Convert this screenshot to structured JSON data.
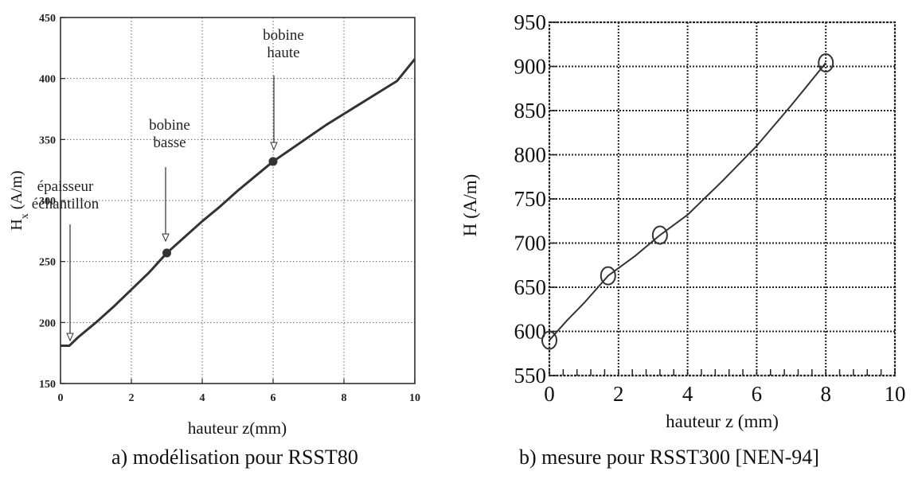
{
  "captions": {
    "a": "a) modélisation pour RSST80",
    "b": "b) mesure pour RSST300 [NEN-94]"
  },
  "chart_data": [
    {
      "type": "line",
      "panel": "a",
      "xlabel": "hauteur z(mm)",
      "ylabel_main": "H",
      "ylabel_sub": "x",
      "ylabel_unit": " (A/m)",
      "xlim": [
        0,
        10
      ],
      "ylim": [
        150,
        450
      ],
      "xticks": [
        0,
        2,
        4,
        6,
        8,
        10
      ],
      "yticks": [
        150,
        200,
        250,
        300,
        350,
        400,
        450
      ],
      "grid": true,
      "grid_style": "dotted",
      "color": "#333333",
      "series": [
        {
          "x": [
            0,
            0.25,
            0.5,
            1,
            1.5,
            2,
            2.5,
            3,
            3.5,
            4,
            4.5,
            5,
            5.5,
            6,
            6.5,
            7,
            7.5,
            8,
            8.5,
            9,
            9.5,
            10
          ],
          "values": [
            181,
            181,
            188,
            200,
            213,
            227,
            241,
            257,
            270,
            283,
            295,
            308,
            320,
            332,
            342,
            352,
            362,
            371,
            380,
            389,
            398,
            416
          ]
        }
      ],
      "markers": [
        {
          "x": 3,
          "y": 257
        },
        {
          "x": 6,
          "y": 332
        }
      ],
      "annotations": [
        {
          "lines": [
            "épaisseur",
            "échantillon"
          ],
          "point": [
            0.25,
            181
          ]
        },
        {
          "lines": [
            "bobine",
            "basse"
          ],
          "point": [
            3,
            257
          ]
        },
        {
          "lines": [
            "bobine",
            "haute"
          ],
          "point": [
            6,
            332
          ]
        }
      ]
    },
    {
      "type": "line",
      "panel": "b",
      "xlabel": "hauteur z (mm)",
      "ylabel": "H (A/m)",
      "xlim": [
        0,
        10
      ],
      "ylim": [
        550,
        950
      ],
      "xticks": [
        0,
        2,
        4,
        6,
        8,
        10
      ],
      "yticks": [
        550,
        600,
        650,
        700,
        750,
        800,
        850,
        900,
        950
      ],
      "grid": true,
      "grid_style": "dotted",
      "color": "#333333",
      "series": [
        {
          "x": [
            0,
            0.5,
            1,
            1.7,
            2.5,
            3.2,
            4,
            5,
            6,
            7,
            8
          ],
          "values": [
            590,
            612,
            632,
            663,
            686,
            709,
            732,
            770,
            810,
            856,
            904
          ]
        }
      ],
      "markers": [
        {
          "x": 0,
          "y": 590
        },
        {
          "x": 1.7,
          "y": 663
        },
        {
          "x": 3.2,
          "y": 709
        },
        {
          "x": 8,
          "y": 904
        }
      ]
    }
  ]
}
